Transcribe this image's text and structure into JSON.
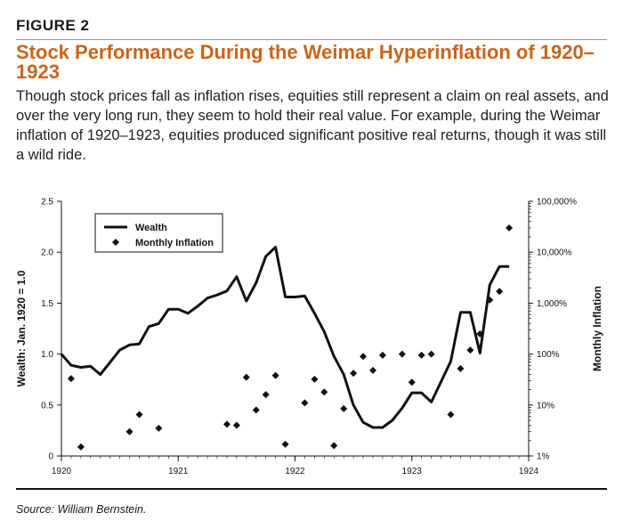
{
  "figure": {
    "label": "FIGURE 2",
    "title": "Stock Performance During the Weimar Hyperinflation of 1920–1923",
    "subtitle": "Though stock prices fall as inflation rises, equities still represent a claim on real assets, and over the very long run, they seem to hold their real value. For example, during the Weimar inflation of 1920–1923, equities produced significant positive real returns, though it was still a wild ride.",
    "source": "Source: William Bernstein."
  },
  "chart_data": {
    "type": "line",
    "title": "Stock Performance During the Weimar Hyperinflation of 1920–1923",
    "xlabel": "",
    "ylabel": "Wealth: Jan. 1920 = 1.0",
    "y2label": "Monthly Inflation",
    "xlim": [
      1920,
      1924
    ],
    "ylim": [
      0,
      2.5
    ],
    "y2lim_log": [
      1,
      100000
    ],
    "x_ticks": [
      "1920",
      "1921",
      "1922",
      "1923",
      "1924"
    ],
    "y_ticks": [
      "0",
      "0.5",
      "1.0",
      "1.5",
      "2.0",
      "2.5"
    ],
    "y2_ticks": [
      "1%",
      "10%",
      "100%",
      "1,000%",
      "10,000%",
      "100,000%"
    ],
    "legend": {
      "position": "top-left",
      "entries": [
        "Wealth",
        "Monthly Inflation"
      ]
    },
    "series": [
      {
        "name": "Wealth",
        "style": "line",
        "x": [
          1920.0,
          1920.083,
          1920.167,
          1920.25,
          1920.333,
          1920.417,
          1920.5,
          1920.583,
          1920.667,
          1920.75,
          1920.833,
          1920.917,
          1921.0,
          1921.083,
          1921.167,
          1921.25,
          1921.333,
          1921.417,
          1921.5,
          1921.583,
          1921.667,
          1921.75,
          1921.833,
          1921.917,
          1922.0,
          1922.083,
          1922.167,
          1922.25,
          1922.333,
          1922.417,
          1922.5,
          1922.583,
          1922.667,
          1922.75,
          1922.833,
          1922.917,
          1923.0,
          1923.083,
          1923.167,
          1923.25,
          1923.333,
          1923.417,
          1923.5,
          1923.583,
          1923.667,
          1923.75,
          1923.833
        ],
        "values": [
          1.0,
          0.89,
          0.87,
          0.88,
          0.8,
          0.92,
          1.04,
          1.09,
          1.1,
          1.27,
          1.3,
          1.44,
          1.44,
          1.4,
          1.47,
          1.55,
          1.58,
          1.62,
          1.76,
          1.52,
          1.7,
          1.96,
          2.05,
          1.56,
          1.56,
          1.57,
          1.4,
          1.22,
          0.98,
          0.8,
          0.5,
          0.33,
          0.28,
          0.28,
          0.35,
          0.47,
          0.62,
          0.62,
          0.53,
          0.73,
          0.93,
          1.41,
          1.41,
          1.01,
          1.68,
          1.86,
          1.86
        ]
      },
      {
        "name": "Monthly Inflation",
        "style": "markers",
        "axis": "right-log-percent",
        "x": [
          1920.083,
          1920.167,
          1920.583,
          1920.667,
          1920.833,
          1921.417,
          1921.5,
          1921.583,
          1921.667,
          1921.75,
          1921.833,
          1921.917,
          1922.083,
          1922.167,
          1922.25,
          1922.333,
          1922.417,
          1922.5,
          1922.583,
          1922.667,
          1922.75,
          1922.917,
          1923.0,
          1923.083,
          1923.167,
          1923.333,
          1923.417,
          1923.5,
          1923.583,
          1923.667,
          1923.75,
          1923.833
        ],
        "values": [
          33,
          1.5,
          3,
          6.5,
          3.5,
          4.2,
          4,
          35,
          8,
          16,
          38,
          1.7,
          11,
          32,
          18,
          1.6,
          8.5,
          42,
          90,
          48,
          95,
          100,
          28,
          95,
          100,
          6.5,
          52,
          120,
          250,
          1150,
          1700,
          30000
        ]
      }
    ]
  }
}
